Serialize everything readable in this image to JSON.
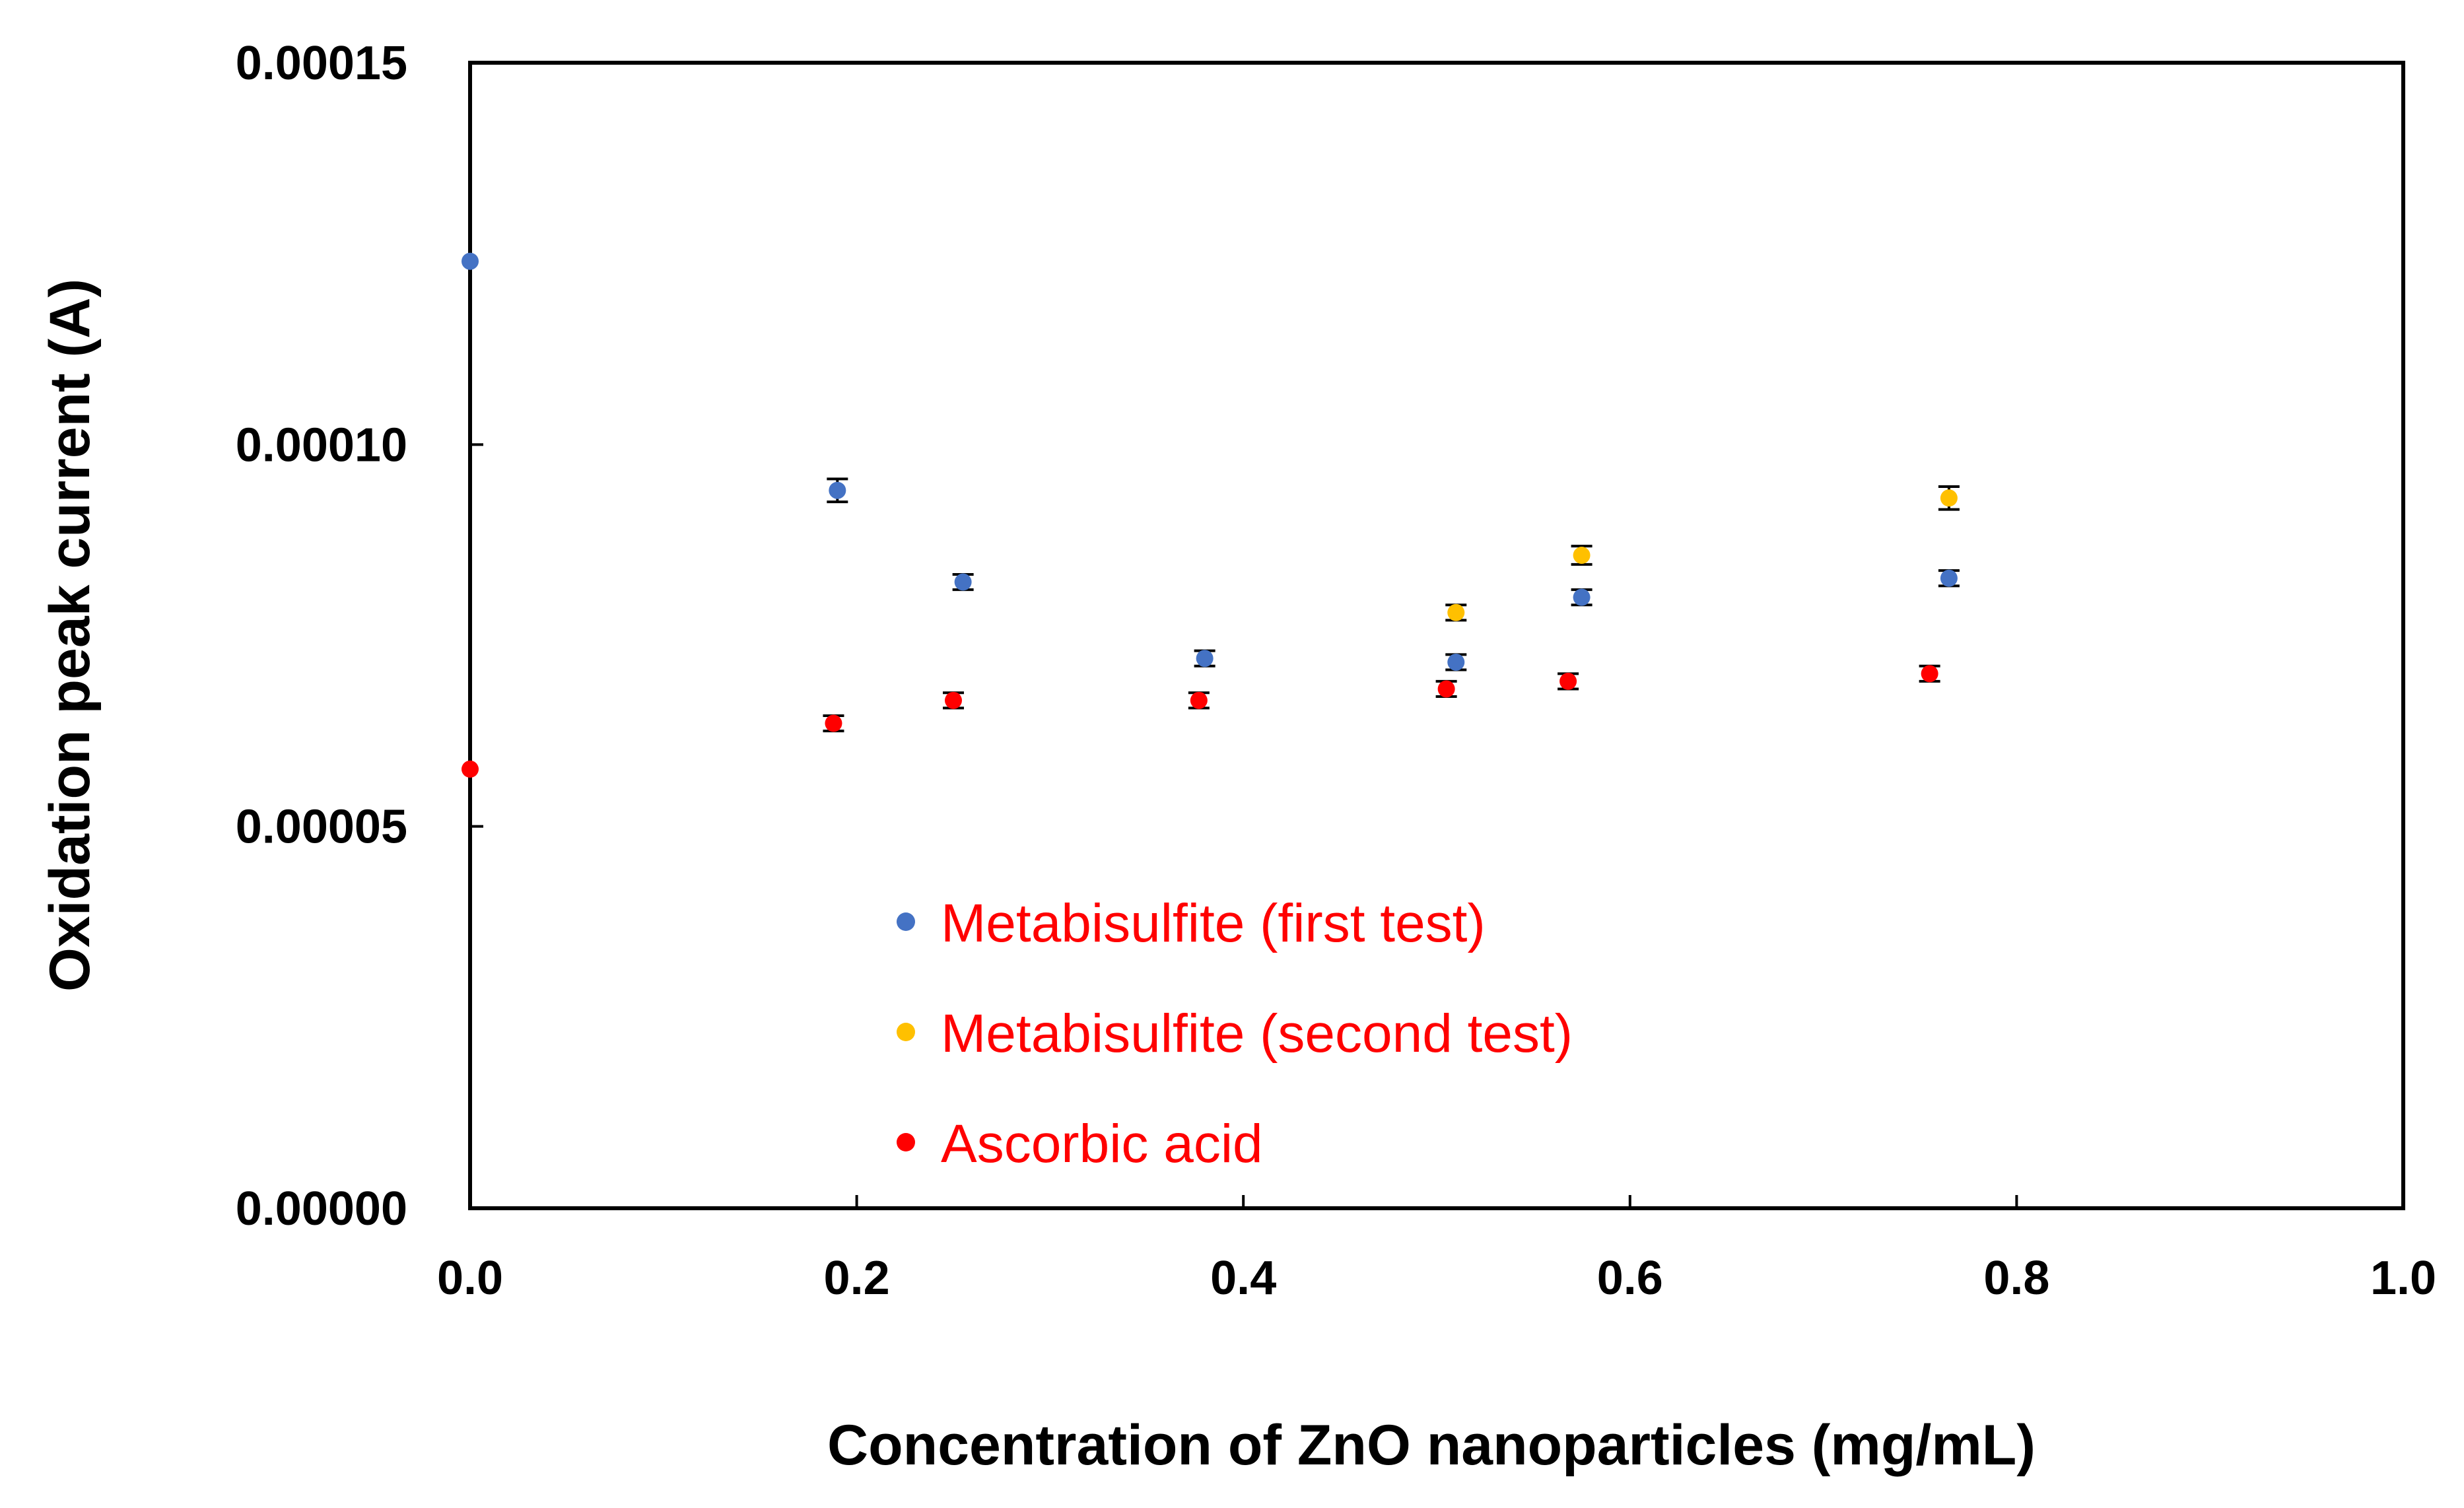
{
  "chart_data": {
    "type": "scatter",
    "title": "",
    "xlabel": "Concentration of ZnO nanoparticles (mg/mL)",
    "ylabel": "Oxidation peak current (A)",
    "xlim": [
      0.0,
      1.0
    ],
    "ylim": [
      0.0,
      0.00015
    ],
    "x_ticks": [
      0.0,
      0.2,
      0.4,
      0.6,
      0.8,
      1.0
    ],
    "x_tick_labels": [
      "0.0",
      "0.2",
      "0.4",
      "0.6",
      "0.8",
      "1.0"
    ],
    "y_ticks": [
      0.0,
      5e-05,
      0.0001,
      0.00015
    ],
    "y_tick_labels": [
      "0.00000",
      "0.00005",
      "0.00010",
      "0.00015"
    ],
    "grid": false,
    "legend_position": "bottom-left inside plot",
    "series": [
      {
        "name": "Metabisulfite (first test)",
        "color": "#4472C4",
        "label_color": "#FF0000",
        "x": [
          0.0,
          0.19,
          0.255,
          0.38,
          0.51,
          0.575,
          0.765
        ],
        "y": [
          0.000124,
          9.4e-05,
          8.2e-05,
          7.2e-05,
          7.15e-05,
          8e-05,
          8.25e-05
        ],
        "err": [
          0,
          1.5e-06,
          1e-06,
          1e-06,
          1e-06,
          1e-06,
          1e-06
        ]
      },
      {
        "name": "Metabisulfite (second test)",
        "color": "#FFC000",
        "label_color": "#FF0000",
        "x": [
          0.51,
          0.575,
          0.765
        ],
        "y": [
          7.8e-05,
          8.55e-05,
          9.3e-05
        ],
        "err": [
          1e-06,
          1.2e-06,
          1.5e-06
        ]
      },
      {
        "name": "Ascorbic acid",
        "color": "#FF0000",
        "label_color": "#FF0000",
        "x": [
          0.0,
          0.188,
          0.25,
          0.377,
          0.505,
          0.568,
          0.755
        ],
        "y": [
          5.75e-05,
          6.35e-05,
          6.65e-05,
          6.65e-05,
          6.8e-05,
          6.9e-05,
          7e-05
        ],
        "err": [
          0,
          1e-06,
          1e-06,
          1e-06,
          1e-06,
          1e-06,
          1e-06
        ]
      }
    ]
  }
}
